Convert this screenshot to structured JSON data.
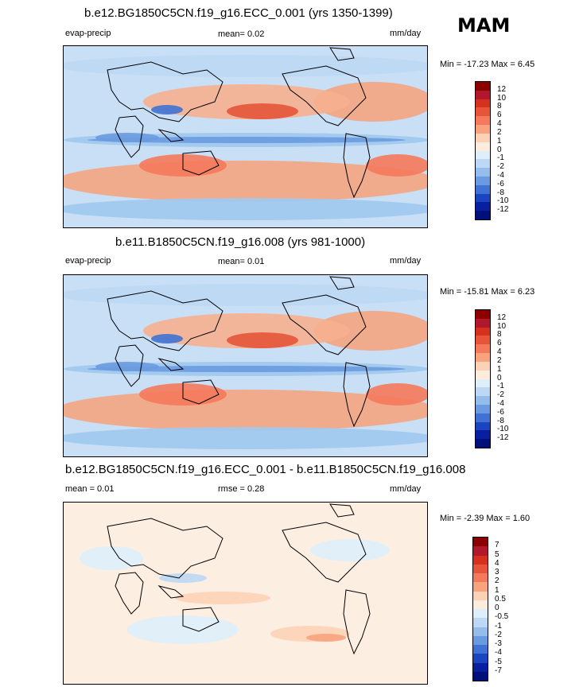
{
  "season": "MAM",
  "colors": {
    "ocean_positive": "#f4a582",
    "ocean_negative": "#9ec8ee",
    "coastline": "#000000"
  },
  "panels": [
    {
      "title": "b.e12.BG1850C5CN.f19_g16.ECC_0.001 (yrs 1350-1399)",
      "left_label": "evap-precip",
      "center_label": "mean=   0.02",
      "right_label": "mm/day",
      "minmax": "Min = -17.23 Max =   6.45",
      "colorbar_levels": [
        "12",
        "10",
        "8",
        "6",
        "4",
        "2",
        "1",
        "0",
        "-1",
        "-2",
        "-4",
        "-6",
        "-8",
        "-10",
        "-12"
      ],
      "colorbar_colors": [
        "#8b0000",
        "#b2182b",
        "#d6301f",
        "#e6553a",
        "#f4795a",
        "#f8a37e",
        "#fcd2b6",
        "#fdebdc",
        "#deeefb",
        "#bcd8f4",
        "#95bdec",
        "#6a9be0",
        "#3f72d4",
        "#1b45c0",
        "#0a1fa0",
        "#00107a"
      ]
    },
    {
      "title": "b.e11.B1850C5CN.f19_g16.008 (yrs 981-1000)",
      "left_label": "evap-precip",
      "center_label": "mean=   0.01",
      "right_label": "mm/day",
      "minmax": "Min = -15.81 Max =   6.23",
      "colorbar_levels": [
        "12",
        "10",
        "8",
        "6",
        "4",
        "2",
        "1",
        "0",
        "-1",
        "-2",
        "-4",
        "-6",
        "-8",
        "-10",
        "-12"
      ],
      "colorbar_colors": [
        "#8b0000",
        "#b2182b",
        "#d6301f",
        "#e6553a",
        "#f4795a",
        "#f8a37e",
        "#fcd2b6",
        "#fdebdc",
        "#deeefb",
        "#bcd8f4",
        "#95bdec",
        "#6a9be0",
        "#3f72d4",
        "#1b45c0",
        "#0a1fa0",
        "#00107a"
      ]
    },
    {
      "title": "b.e12.BG1850C5CN.f19_g16.ECC_0.001 - b.e11.B1850C5CN.f19_g16.008",
      "left_label": "mean =   0.01",
      "center_label": "rmse =   0.28",
      "right_label": "mm/day",
      "minmax": "Min =  -2.39 Max =   1.60",
      "colorbar_levels": [
        "7",
        "5",
        "4",
        "3",
        "2",
        "1",
        "0.5",
        "0",
        "-0.5",
        "-1",
        "-2",
        "-3",
        "-4",
        "-5",
        "-7"
      ],
      "colorbar_colors": [
        "#8b0000",
        "#b2182b",
        "#d6301f",
        "#e6553a",
        "#f4795a",
        "#f8a37e",
        "#fcd2b6",
        "#fdebdc",
        "#deeefb",
        "#bcd8f4",
        "#95bdec",
        "#6a9be0",
        "#3f72d4",
        "#1b45c0",
        "#0a1fa0",
        "#00107a"
      ]
    }
  ],
  "chart_data": [
    {
      "type": "heatmap",
      "title": "b.e12.BG1850C5CN.f19_g16.ECC_0.001 (yrs 1350-1399)",
      "variable": "evap-precip",
      "units": "mm/day",
      "mean": 0.02,
      "min": -17.23,
      "max": 6.45,
      "levels": [
        -12,
        -10,
        -8,
        -6,
        -4,
        -2,
        -1,
        0,
        1,
        2,
        4,
        6,
        8,
        10,
        12
      ]
    },
    {
      "type": "heatmap",
      "title": "b.e11.B1850C5CN.f19_g16.008 (yrs 981-1000)",
      "variable": "evap-precip",
      "units": "mm/day",
      "mean": 0.01,
      "min": -15.81,
      "max": 6.23,
      "levels": [
        -12,
        -10,
        -8,
        -6,
        -4,
        -2,
        -1,
        0,
        1,
        2,
        4,
        6,
        8,
        10,
        12
      ]
    },
    {
      "type": "heatmap",
      "title": "b.e12.BG1850C5CN.f19_g16.ECC_0.001 - b.e11.B1850C5CN.f19_g16.008",
      "units": "mm/day",
      "mean": 0.01,
      "rmse": 0.28,
      "min": -2.39,
      "max": 1.6,
      "levels": [
        -7,
        -5,
        -4,
        -3,
        -2,
        -1,
        -0.5,
        0,
        0.5,
        1,
        2,
        3,
        4,
        5,
        7
      ]
    }
  ]
}
